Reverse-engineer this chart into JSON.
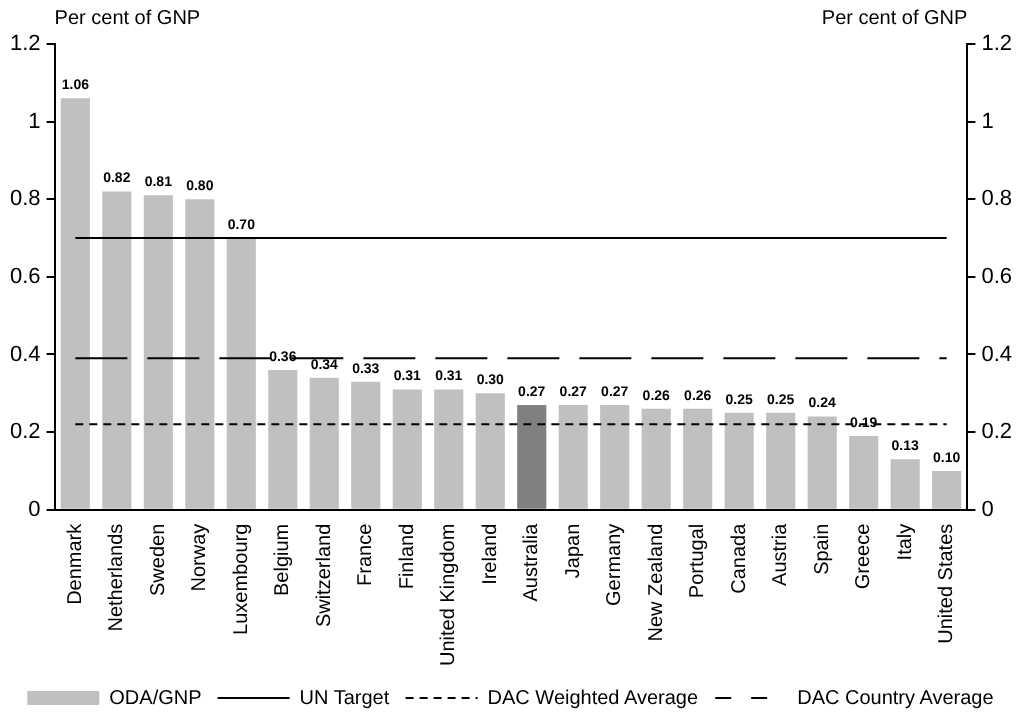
{
  "chart_data": {
    "type": "bar",
    "ylabel": "Per cent of GNP",
    "y2label": "Per cent of GNP",
    "categories": [
      "Denmark",
      "Netherlands",
      "Sweden",
      "Norway",
      "Luxembourg",
      "Belgium",
      "Switzerland",
      "France",
      "Finland",
      "United Kingdom",
      "Ireland",
      "Australia",
      "Japan",
      "Germany",
      "New Zealand",
      "Portugal",
      "Canada",
      "Austria",
      "Spain",
      "Greece",
      "Italy",
      "United States"
    ],
    "series": [
      {
        "name": "ODA/GNP",
        "color": "#c0c0c0",
        "colors": [
          "#c0c0c0",
          "#c0c0c0",
          "#c0c0c0",
          "#c0c0c0",
          "#c0c0c0",
          "#c0c0c0",
          "#c0c0c0",
          "#c0c0c0",
          "#c0c0c0",
          "#c0c0c0",
          "#c0c0c0",
          "#808080",
          "#c0c0c0",
          "#c0c0c0",
          "#c0c0c0",
          "#c0c0c0",
          "#c0c0c0",
          "#c0c0c0",
          "#c0c0c0",
          "#c0c0c0",
          "#c0c0c0",
          "#c0c0c0"
        ],
        "values": [
          1.06,
          0.82,
          0.81,
          0.8,
          0.7,
          0.36,
          0.34,
          0.33,
          0.31,
          0.31,
          0.3,
          0.27,
          0.27,
          0.27,
          0.26,
          0.26,
          0.25,
          0.25,
          0.24,
          0.19,
          0.13,
          0.1
        ],
        "value_labels": [
          "1.06",
          "0.82",
          "0.81",
          "0.80",
          "0.70",
          "0.36",
          "0.34",
          "0.33",
          "0.31",
          "0.31",
          "0.30",
          "0.27",
          "0.27",
          "0.27",
          "0.26",
          "0.26",
          "0.25",
          "0.25",
          "0.24",
          "0.19",
          "0.13",
          "0.10"
        ]
      },
      {
        "name": "UN Target",
        "type": "line",
        "color": "#000000",
        "line_style": "solid",
        "values": [
          0.7,
          0.7,
          0.7,
          0.7,
          0.7,
          0.7,
          0.7,
          0.7,
          0.7,
          0.7,
          0.7,
          0.7,
          0.7,
          0.7,
          0.7,
          0.7,
          0.7,
          0.7,
          0.7,
          0.7,
          0.7,
          0.7
        ]
      },
      {
        "name": "DAC Weighted Average",
        "type": "line",
        "color": "#000000",
        "line_style": "dotted",
        "values": [
          0.22,
          0.22,
          0.22,
          0.22,
          0.22,
          0.22,
          0.22,
          0.22,
          0.22,
          0.22,
          0.22,
          0.22,
          0.22,
          0.22,
          0.22,
          0.22,
          0.22,
          0.22,
          0.22,
          0.22,
          0.22,
          0.22
        ]
      },
      {
        "name": "DAC Country Average",
        "type": "line",
        "color": "#000000",
        "line_style": "dashed",
        "values": [
          0.39,
          0.39,
          0.39,
          0.39,
          0.39,
          0.39,
          0.39,
          0.39,
          0.39,
          0.39,
          0.39,
          0.39,
          0.39,
          0.39,
          0.39,
          0.39,
          0.39,
          0.39,
          0.39,
          0.39,
          0.39,
          0.39
        ]
      }
    ],
    "ylim": [
      0,
      1.2
    ],
    "yticks": [
      0,
      0.2,
      0.4,
      0.6,
      0.8,
      1,
      1.2
    ],
    "y2lim": [
      0,
      1.2
    ],
    "y2ticks": [
      0,
      0.2,
      0.4,
      0.6,
      0.8,
      1,
      1.2
    ],
    "grid": false,
    "legend": "bottom",
    "marker": "none"
  }
}
